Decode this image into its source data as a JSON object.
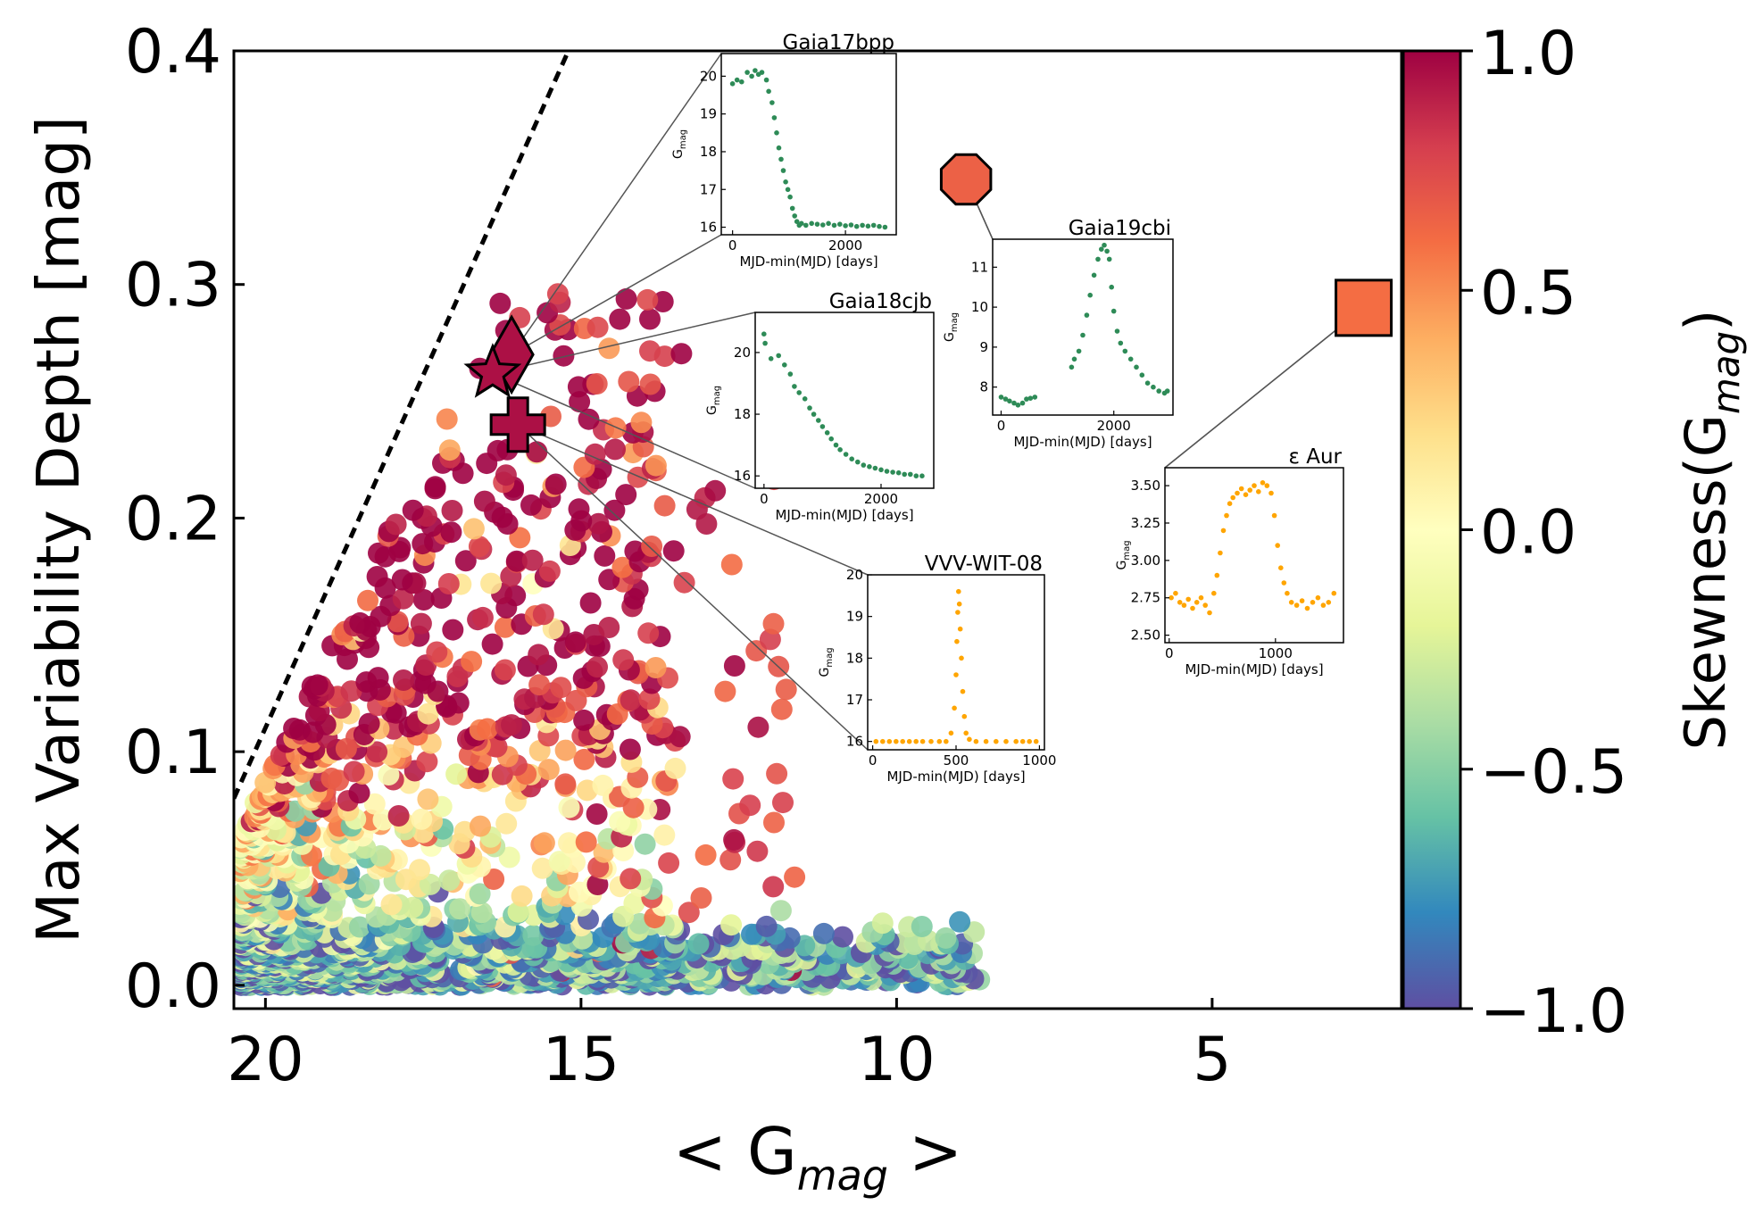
{
  "chart_data": {
    "type": "scatter",
    "xlabel_prefix": "< G",
    "xlabel_sub": "mag",
    "xlabel_suffix": " >",
    "ylabel": "Max Variability Depth [mag]",
    "xlim": [
      20.5,
      2
    ],
    "ylim": [
      -0.01,
      0.4
    ],
    "x_ticks": [
      "20",
      "15",
      "10",
      "5"
    ],
    "x_tick_values": [
      20,
      15,
      10,
      5
    ],
    "y_ticks": [
      "0.0",
      "0.1",
      "0.2",
      "0.3",
      "0.4"
    ],
    "y_tick_values": [
      0.0,
      0.1,
      0.2,
      0.3,
      0.4
    ],
    "colorbar": {
      "label_prefix": "Skewness(G",
      "label_sub": "mag",
      "label_suffix": ")",
      "range": [
        -1.0,
        1.0
      ],
      "ticks": [
        "1.0",
        "0.5",
        "0.0",
        "−0.5",
        "−1.0"
      ],
      "tick_values": [
        1.0,
        0.5,
        0.0,
        -0.5,
        -1.0
      ],
      "colormap": "Spectral_r"
    },
    "dashed_line": {
      "x": [
        20.5,
        15.2
      ],
      "y": [
        0.08,
        0.4
      ]
    },
    "highlighted": [
      {
        "name": "Gaia17bpp",
        "marker": "diamond",
        "x": 16.1,
        "y": 0.27,
        "skew": 0.95
      },
      {
        "name": "Gaia18cjb",
        "marker": "star",
        "x": 16.4,
        "y": 0.262,
        "skew": 0.95
      },
      {
        "name": "VVV-WIT-08",
        "marker": "plus",
        "x": 16.0,
        "y": 0.24,
        "skew": 0.95
      },
      {
        "name": "Gaia19cbi",
        "marker": "octagon",
        "x": 8.9,
        "y": 0.345,
        "skew": 0.65
      },
      {
        "name": "ε Aur",
        "marker": "square",
        "x": 2.6,
        "y": 0.29,
        "skew": 0.6
      }
    ],
    "insets": [
      {
        "title": "Gaia17bpp",
        "color": "#2e8b57",
        "xlabel": "MJD-min(MJD) [days]",
        "ylabel_main": "G",
        "ylabel_sub": "mag",
        "xlim": [
          -200,
          2900
        ],
        "ylim": [
          20.6,
          15.8
        ],
        "xticks": [
          "0",
          "2000"
        ],
        "xtick_values": [
          0,
          2000
        ],
        "yticks": [
          "16",
          "17",
          "18",
          "19",
          "20"
        ],
        "ytick_values": [
          16,
          17,
          18,
          19,
          20
        ],
        "points": [
          [
            0,
            19.8
          ],
          [
            80,
            19.9
          ],
          [
            160,
            19.85
          ],
          [
            260,
            20.1
          ],
          [
            340,
            20.0
          ],
          [
            400,
            20.15
          ],
          [
            460,
            20.05
          ],
          [
            520,
            20.1
          ],
          [
            600,
            19.9
          ],
          [
            640,
            19.6
          ],
          [
            700,
            19.3
          ],
          [
            740,
            18.9
          ],
          [
            780,
            18.5
          ],
          [
            820,
            18.1
          ],
          [
            860,
            17.8
          ],
          [
            900,
            17.5
          ],
          [
            940,
            17.2
          ],
          [
            980,
            17.0
          ],
          [
            1020,
            16.8
          ],
          [
            1060,
            16.5
          ],
          [
            1100,
            16.3
          ],
          [
            1140,
            16.15
          ],
          [
            1180,
            16.05
          ],
          [
            1220,
            16.1
          ],
          [
            1300,
            16.05
          ],
          [
            1400,
            16.1
          ],
          [
            1500,
            16.08
          ],
          [
            1600,
            16.06
          ],
          [
            1700,
            16.1
          ],
          [
            1800,
            16.05
          ],
          [
            1900,
            16.08
          ],
          [
            2000,
            16.04
          ],
          [
            2100,
            16.06
          ],
          [
            2200,
            16.02
          ],
          [
            2300,
            16.05
          ],
          [
            2400,
            16.03
          ],
          [
            2500,
            16.05
          ],
          [
            2600,
            16.02
          ],
          [
            2700,
            16.0
          ]
        ]
      },
      {
        "title": "Gaia19cbi",
        "color": "#2e8b57",
        "xlabel": "MJD-min(MJD) [days]",
        "ylabel_main": "G",
        "ylabel_sub": "mag",
        "xlim": [
          -150,
          3050
        ],
        "ylim": [
          11.7,
          7.3
        ],
        "xticks": [
          "0",
          "2000"
        ],
        "xtick_values": [
          0,
          2000
        ],
        "yticks": [
          "8",
          "9",
          "10",
          "11"
        ],
        "ytick_values": [
          8,
          9,
          10,
          11
        ],
        "points": [
          [
            0,
            7.75
          ],
          [
            80,
            7.7
          ],
          [
            150,
            7.65
          ],
          [
            230,
            7.6
          ],
          [
            300,
            7.55
          ],
          [
            380,
            7.6
          ],
          [
            450,
            7.7
          ],
          [
            520,
            7.72
          ],
          [
            600,
            7.75
          ],
          [
            1250,
            8.5
          ],
          [
            1300,
            8.7
          ],
          [
            1380,
            8.9
          ],
          [
            1450,
            9.3
          ],
          [
            1520,
            9.8
          ],
          [
            1580,
            10.3
          ],
          [
            1650,
            10.8
          ],
          [
            1720,
            11.2
          ],
          [
            1780,
            11.45
          ],
          [
            1830,
            11.55
          ],
          [
            1880,
            11.4
          ],
          [
            1920,
            11.2
          ],
          [
            1960,
            10.5
          ],
          [
            2000,
            9.9
          ],
          [
            2060,
            9.4
          ],
          [
            2120,
            9.1
          ],
          [
            2200,
            8.9
          ],
          [
            2300,
            8.7
          ],
          [
            2400,
            8.5
          ],
          [
            2500,
            8.3
          ],
          [
            2600,
            8.1
          ],
          [
            2700,
            8.0
          ],
          [
            2800,
            7.9
          ],
          [
            2900,
            7.85
          ],
          [
            2950,
            7.9
          ]
        ]
      },
      {
        "title": "Gaia18cjb",
        "color": "#2e8b57",
        "xlabel": "MJD-min(MJD) [days]",
        "ylabel_main": "G",
        "ylabel_sub": "mag",
        "xlim": [
          -150,
          2900
        ],
        "ylim": [
          21.3,
          15.6
        ],
        "xticks": [
          "0",
          "2000"
        ],
        "xtick_values": [
          0,
          2000
        ],
        "yticks": [
          "16",
          "18",
          "20"
        ],
        "ytick_values": [
          16,
          18,
          20
        ],
        "points": [
          [
            0,
            20.6
          ],
          [
            20,
            20.3
          ],
          [
            120,
            19.8
          ],
          [
            250,
            19.9
          ],
          [
            350,
            19.6
          ],
          [
            450,
            19.3
          ],
          [
            520,
            18.9
          ],
          [
            600,
            18.7
          ],
          [
            700,
            18.5
          ],
          [
            780,
            18.2
          ],
          [
            850,
            18.0
          ],
          [
            930,
            17.8
          ],
          [
            1000,
            17.6
          ],
          [
            1080,
            17.4
          ],
          [
            1150,
            17.2
          ],
          [
            1230,
            17.0
          ],
          [
            1300,
            16.85
          ],
          [
            1400,
            16.7
          ],
          [
            1500,
            16.55
          ],
          [
            1600,
            16.45
          ],
          [
            1700,
            16.35
          ],
          [
            1800,
            16.3
          ],
          [
            1900,
            16.25
          ],
          [
            2000,
            16.2
          ],
          [
            2100,
            16.15
          ],
          [
            2200,
            16.12
          ],
          [
            2300,
            16.1
          ],
          [
            2400,
            16.05
          ],
          [
            2500,
            16.05
          ],
          [
            2600,
            16.0
          ],
          [
            2700,
            16.0
          ]
        ]
      },
      {
        "title": "VVV-WIT-08",
        "color": "#ffa500",
        "xlabel": "MJD-min(MJD) [days]",
        "ylabel_main": "G",
        "ylabel_sub": "mag",
        "xlim": [
          -30,
          1030
        ],
        "ylim": [
          20.0,
          15.8
        ],
        "xticks": [
          "0",
          "500",
          "1000"
        ],
        "xtick_values": [
          0,
          500,
          1000
        ],
        "yticks": [
          "16",
          "17",
          "18",
          "19",
          "20"
        ],
        "ytick_values": [
          16,
          17,
          18,
          19,
          20
        ],
        "points": [
          [
            20,
            16.0
          ],
          [
            60,
            16.0
          ],
          [
            100,
            16.0
          ],
          [
            140,
            16.0
          ],
          [
            180,
            16.0
          ],
          [
            220,
            16.0
          ],
          [
            260,
            16.0
          ],
          [
            300,
            16.0
          ],
          [
            350,
            16.0
          ],
          [
            400,
            16.0
          ],
          [
            440,
            16.0
          ],
          [
            470,
            16.2
          ],
          [
            490,
            16.8
          ],
          [
            500,
            17.6
          ],
          [
            505,
            18.4
          ],
          [
            510,
            19.1
          ],
          [
            515,
            19.6
          ],
          [
            520,
            19.3
          ],
          [
            525,
            18.7
          ],
          [
            532,
            18.0
          ],
          [
            540,
            17.2
          ],
          [
            550,
            16.6
          ],
          [
            560,
            16.2
          ],
          [
            580,
            16.05
          ],
          [
            620,
            16.0
          ],
          [
            680,
            16.0
          ],
          [
            740,
            16.0
          ],
          [
            800,
            16.0
          ],
          [
            860,
            16.0
          ],
          [
            900,
            16.0
          ],
          [
            940,
            16.0
          ],
          [
            980,
            16.0
          ]
        ]
      },
      {
        "title": "ε  Aur",
        "color": "#ffa500",
        "xlabel": "MJD-min(MJD) [days]",
        "ylabel_main": "G",
        "ylabel_sub": "mag",
        "xlim": [
          -40,
          1640
        ],
        "ylim": [
          3.62,
          2.45
        ],
        "xticks": [
          "0",
          "1000"
        ],
        "xtick_values": [
          0,
          1000
        ],
        "yticks": [
          "2.50",
          "2.75",
          "3.00",
          "3.25",
          "3.50"
        ],
        "ytick_values": [
          2.5,
          2.75,
          3.0,
          3.25,
          3.5
        ],
        "points": [
          [
            20,
            2.75
          ],
          [
            60,
            2.78
          ],
          [
            100,
            2.72
          ],
          [
            140,
            2.7
          ],
          [
            180,
            2.74
          ],
          [
            220,
            2.68
          ],
          [
            260,
            2.72
          ],
          [
            300,
            2.75
          ],
          [
            340,
            2.7
          ],
          [
            380,
            2.65
          ],
          [
            420,
            2.78
          ],
          [
            450,
            2.9
          ],
          [
            480,
            3.05
          ],
          [
            510,
            3.2
          ],
          [
            540,
            3.3
          ],
          [
            570,
            3.38
          ],
          [
            600,
            3.42
          ],
          [
            640,
            3.45
          ],
          [
            680,
            3.48
          ],
          [
            720,
            3.44
          ],
          [
            760,
            3.47
          ],
          [
            800,
            3.5
          ],
          [
            840,
            3.46
          ],
          [
            880,
            3.52
          ],
          [
            920,
            3.5
          ],
          [
            960,
            3.45
          ],
          [
            990,
            3.3
          ],
          [
            1020,
            3.1
          ],
          [
            1050,
            2.95
          ],
          [
            1080,
            2.85
          ],
          [
            1110,
            2.78
          ],
          [
            1150,
            2.72
          ],
          [
            1200,
            2.7
          ],
          [
            1250,
            2.73
          ],
          [
            1300,
            2.68
          ],
          [
            1350,
            2.72
          ],
          [
            1400,
            2.75
          ],
          [
            1450,
            2.7
          ],
          [
            1500,
            2.72
          ],
          [
            1550,
            2.78
          ]
        ]
      }
    ]
  }
}
